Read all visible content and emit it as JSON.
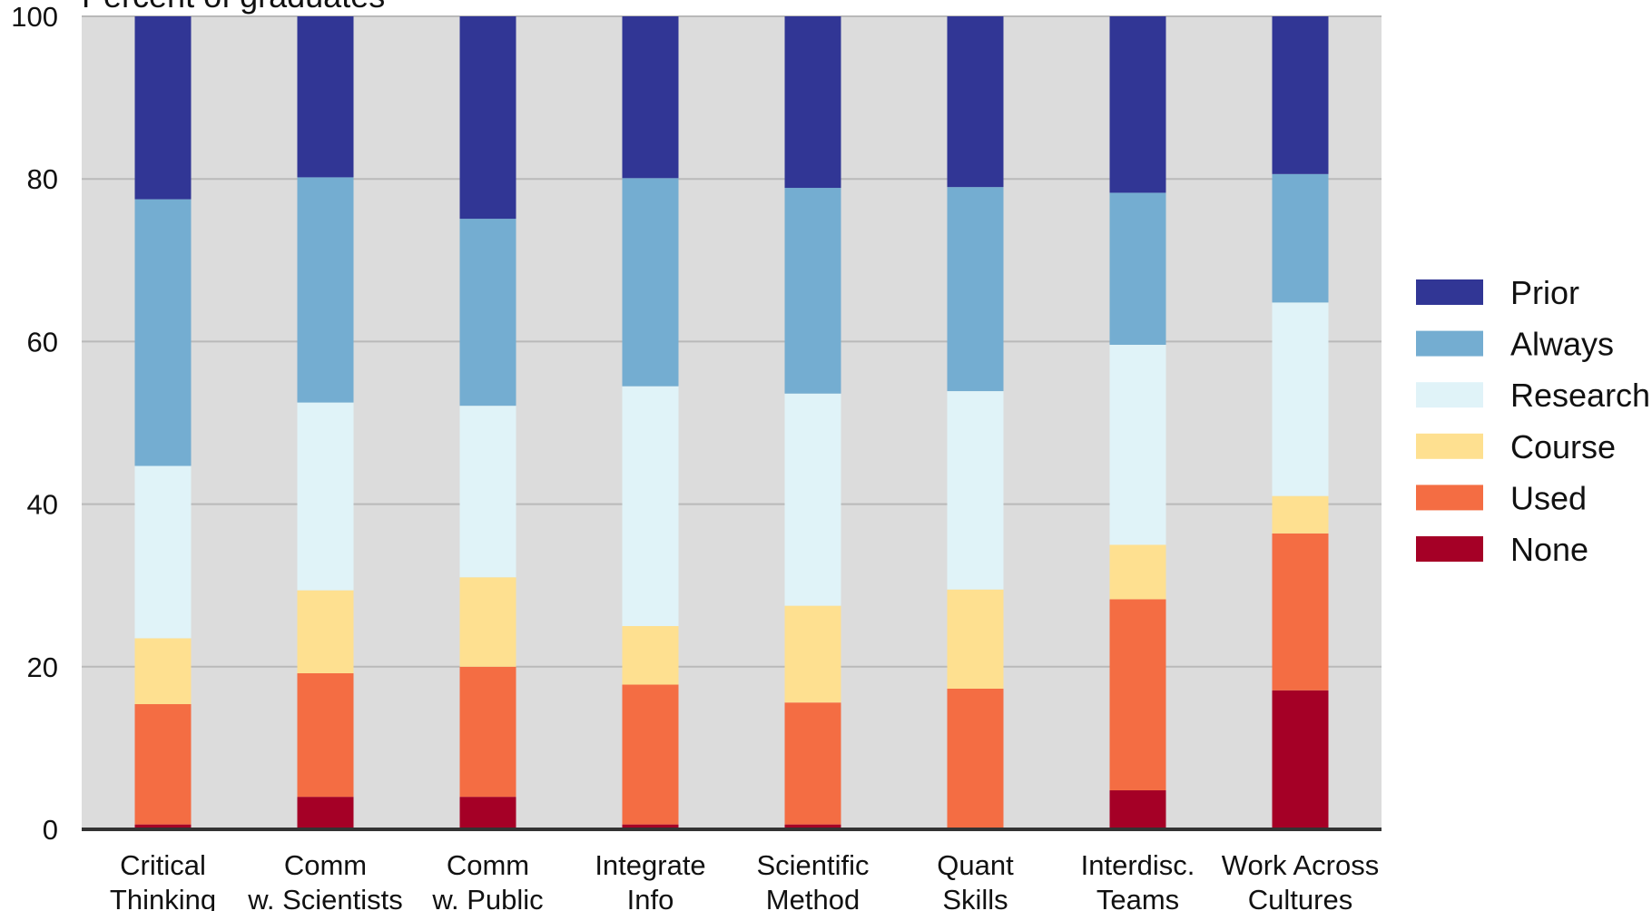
{
  "chart_data": {
    "type": "bar",
    "stacked": true,
    "ylabel": "Percent of graduates",
    "ylim": [
      0,
      100
    ],
    "yticks": [
      0,
      20,
      40,
      60,
      80,
      100
    ],
    "grid": true,
    "legend_position": "right",
    "categories": [
      [
        "Critical",
        "Thinking"
      ],
      [
        "Comm",
        "w. Scientists"
      ],
      [
        "Comm",
        "w. Public"
      ],
      [
        "Integrate",
        "Info"
      ],
      [
        "Scientific",
        "Method"
      ],
      [
        "Quant",
        "Skills"
      ],
      [
        "Interdisc.",
        "Teams"
      ],
      [
        "Work Across",
        "Cultures"
      ]
    ],
    "series": [
      {
        "name": "None",
        "color": "#a50026",
        "values": [
          0.6,
          4.0,
          4.0,
          0.6,
          0.6,
          0.0,
          4.8,
          17.1
        ]
      },
      {
        "name": "Used",
        "color": "#f46d43",
        "values": [
          14.8,
          15.2,
          16.0,
          17.2,
          15.0,
          17.3,
          23.5,
          19.3
        ]
      },
      {
        "name": "Course",
        "color": "#fee090",
        "values": [
          8.1,
          10.2,
          11.0,
          7.2,
          11.9,
          12.2,
          6.7,
          4.6
        ]
      },
      {
        "name": "Research",
        "color": "#e0f3f8",
        "values": [
          21.2,
          23.1,
          21.1,
          29.5,
          26.1,
          24.4,
          24.6,
          23.8
        ]
      },
      {
        "name": "Always",
        "color": "#74add1",
        "values": [
          32.8,
          27.7,
          23.0,
          25.6,
          25.3,
          25.1,
          18.7,
          15.8
        ]
      },
      {
        "name": "Prior",
        "color": "#313695",
        "values": [
          22.5,
          19.8,
          24.9,
          19.9,
          21.1,
          21.0,
          21.7,
          19.4
        ]
      }
    ]
  }
}
